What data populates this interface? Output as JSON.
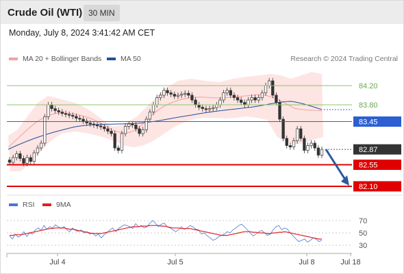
{
  "header": {
    "title": "Crude Oil (WTI)",
    "timeframe": "30 MIN"
  },
  "date_line": "Monday, July 8, 2024 3:41:42 AM CET",
  "legend": {
    "items": [
      {
        "label": "MA 20 + Bollinger Bands",
        "color": "#f4a19e"
      },
      {
        "label": "MA 50",
        "color": "#1f4e9c"
      }
    ],
    "attribution": "Research © 2024 Trading Central"
  },
  "rsi_legend": {
    "items": [
      {
        "label": "RSI",
        "color": "#4a74d6"
      },
      {
        "label": "9MA",
        "color": "#e02020"
      }
    ]
  },
  "chart_data": [
    {
      "type": "candlestick",
      "title": "Crude Oil (WTI)",
      "timeframe": "30 MIN",
      "price_axis": {
        "min": 82.1,
        "max": 84.2,
        "labels": [
          "84.20",
          "83.80",
          "83.45",
          "82.87",
          "82.55",
          "82.10"
        ]
      },
      "x_tick_labels": [
        "Jul 4",
        "Jul 5",
        "Jul 8",
        "Jul 18"
      ],
      "levels": [
        {
          "value": 84.2,
          "label": "84.20",
          "kind": "resistance",
          "color": "#8cc56b"
        },
        {
          "value": 83.8,
          "label": "83.80",
          "kind": "resistance",
          "color": "#8cc56b"
        },
        {
          "value": 83.45,
          "label": "83.45",
          "kind": "pivot",
          "color": "#2d5fd3"
        },
        {
          "value": 82.87,
          "label": "82.87",
          "kind": "last_price",
          "color": "#333333"
        },
        {
          "value": 82.55,
          "label": "82.55",
          "kind": "support",
          "color": "#e00000"
        },
        {
          "value": 82.1,
          "label": "82.10",
          "kind": "support",
          "color": "#e00000"
        }
      ],
      "last_price": 82.87,
      "forecast_arrow": {
        "from": 82.87,
        "to": 82.1,
        "direction": "down"
      },
      "candles_close": [
        82.6,
        82.7,
        82.78,
        82.68,
        82.58,
        82.7,
        82.62,
        82.8,
        82.9,
        83.0,
        83.55,
        83.8,
        83.72,
        83.68,
        83.65,
        83.62,
        83.6,
        83.58,
        83.56,
        83.52,
        83.5,
        83.46,
        83.42,
        83.4,
        83.38,
        83.36,
        83.34,
        83.3,
        83.25,
        83.2,
        82.9,
        82.85,
        83.2,
        83.35,
        83.4,
        83.38,
        83.3,
        83.2,
        83.28,
        83.5,
        83.65,
        83.8,
        83.95,
        84.0,
        84.1,
        84.05,
        84.02,
        83.98,
        84.0,
        84.02,
        84.04,
        84.0,
        83.9,
        83.8,
        83.75,
        83.72,
        83.7,
        83.72,
        83.74,
        83.8,
        83.9,
        84.05,
        84.1,
        84.0,
        83.95,
        83.9,
        83.85,
        83.8,
        83.9,
        83.95,
        83.9,
        83.95,
        84.05,
        84.2,
        84.3,
        84.0,
        83.85,
        83.5,
        83.1,
        82.95,
        82.92,
        83.05,
        83.3,
        83.1,
        82.85,
        82.95,
        83.0,
        82.9,
        82.75,
        82.87
      ],
      "ma20_bands": {
        "shown": true
      },
      "ma50": {
        "shown": true
      }
    },
    {
      "type": "line",
      "title": "RSI",
      "y_tick_labels": [
        "70",
        "50",
        "30"
      ],
      "ylim": [
        20,
        80
      ],
      "series": [
        {
          "name": "RSI",
          "color": "#4a74d6",
          "values": [
            45,
            40,
            48,
            43,
            46,
            52,
            44,
            50,
            48,
            55,
            58,
            54,
            62,
            56,
            60,
            58,
            63,
            60,
            57,
            60,
            55,
            52,
            58,
            54,
            52,
            55,
            50,
            52,
            48,
            50,
            45,
            48,
            42,
            47,
            50,
            55,
            58,
            52,
            57,
            60,
            63,
            62,
            60,
            57,
            65,
            60,
            62,
            58,
            60,
            66,
            70,
            65,
            60,
            64,
            66,
            60,
            58,
            55,
            52,
            55,
            60,
            56,
            58,
            62,
            60,
            56,
            55,
            48,
            50,
            45,
            42,
            38,
            40,
            44,
            46,
            48,
            52,
            50,
            55,
            58,
            62,
            64,
            60,
            55,
            50,
            45,
            48,
            52,
            54,
            50,
            46,
            48,
            55,
            60,
            62,
            55,
            58,
            56,
            50,
            45,
            40,
            36,
            38,
            40,
            35,
            38,
            42,
            40,
            36,
            38
          ]
        },
        {
          "name": "9MA",
          "color": "#e02020",
          "values": [
            46,
            46,
            47,
            47,
            47,
            48,
            49,
            50,
            51,
            52,
            53,
            54,
            55,
            56,
            57,
            57,
            58,
            58,
            58,
            58,
            57,
            56,
            56,
            55,
            54,
            53,
            52,
            51,
            50,
            49,
            49,
            49,
            49,
            50,
            51,
            52,
            53,
            54,
            55,
            56,
            57,
            58,
            59,
            60,
            60,
            60,
            61,
            61,
            61,
            62,
            62,
            62,
            62,
            61,
            61,
            60,
            59,
            58,
            58,
            58,
            57,
            57,
            57,
            57,
            56,
            55,
            54,
            53,
            52,
            51,
            50,
            49,
            48,
            47,
            46,
            46,
            46,
            47,
            48,
            49,
            50,
            51,
            52,
            52,
            52,
            51,
            51,
            50,
            50,
            50,
            49,
            49,
            50,
            50,
            51,
            51,
            52,
            51,
            50,
            49,
            48,
            47,
            46,
            45,
            44,
            43,
            42,
            41,
            40,
            40
          ]
        }
      ]
    }
  ]
}
